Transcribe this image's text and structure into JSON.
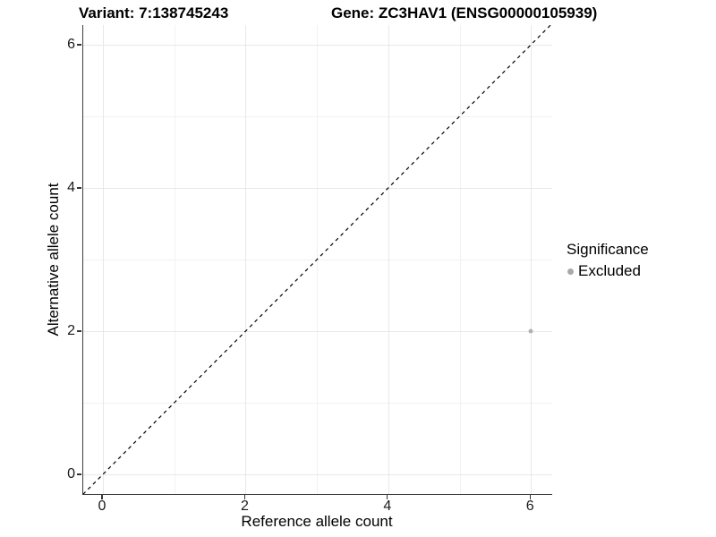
{
  "chart_data": {
    "type": "scatter",
    "title_left": "Variant: 7:138745243",
    "title_right": "Gene: ZC3HAV1 (ENSG00000105939)",
    "xlabel": "Reference allele count",
    "ylabel": "Alternative allele count",
    "xlim": [
      -0.28,
      6.3
    ],
    "ylim": [
      -0.28,
      6.3
    ],
    "x_ticks": [
      0,
      2,
      4,
      6
    ],
    "y_ticks": [
      0,
      2,
      4,
      6
    ],
    "x_minor_ticks": [
      1,
      3,
      5
    ],
    "y_minor_ticks": [
      1,
      3,
      5
    ],
    "grid": "on",
    "reference_line": {
      "type": "identity y=x",
      "style": "dashed",
      "color": "#000000"
    },
    "series": [
      {
        "name": "Excluded",
        "color": "#b2b2b2",
        "points": [
          {
            "x": 6,
            "y": 2
          }
        ]
      }
    ],
    "legend": {
      "title": "Significance",
      "position": "right",
      "entries": [
        {
          "label": "Excluded",
          "color": "#a9a9a9"
        }
      ]
    }
  },
  "colors": {
    "background": "#ffffff",
    "grid_major": "#e8e8e8",
    "grid_minor": "#f2f2f2",
    "axis_line": "#3d3d3d",
    "tick_label": "#1a1a1a"
  }
}
